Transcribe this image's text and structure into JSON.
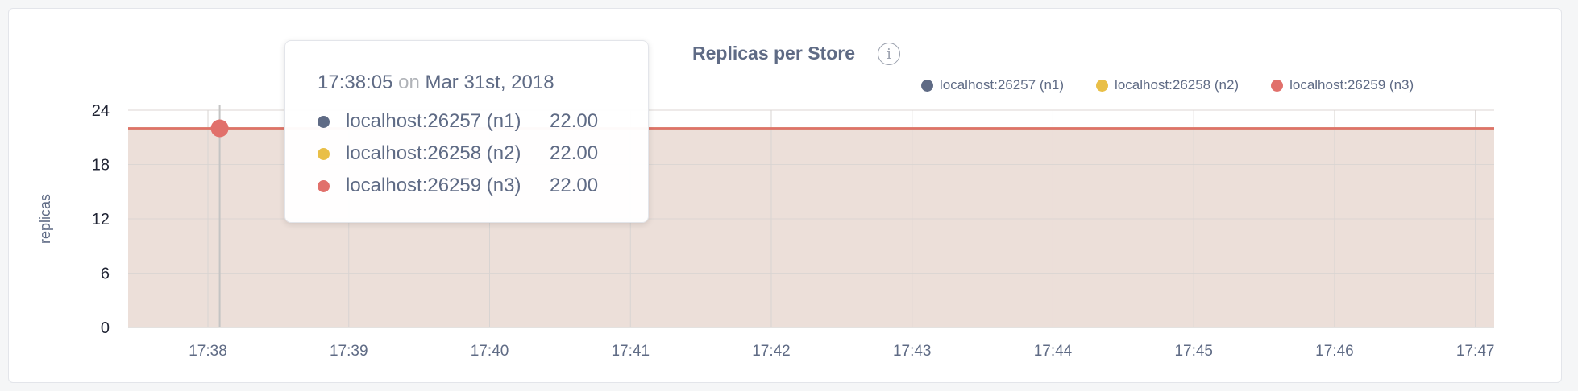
{
  "title": "Replicas per Store",
  "info_icon": "info-icon",
  "colors": {
    "n1": "#5f6b85",
    "n2": "#e9bf47",
    "n3": "#e1706b",
    "fill": "#ecdfd9",
    "text": "#5f6b85"
  },
  "tooltip": {
    "time": "17:38:05",
    "on": "on",
    "date": "Mar 31st, 2018",
    "rows": [
      {
        "name": "localhost:26257 (n1)",
        "value": "22.00"
      },
      {
        "name": "localhost:26258 (n2)",
        "value": "22.00"
      },
      {
        "name": "localhost:26259 (n3)",
        "value": "22.00"
      }
    ]
  },
  "chart_data": {
    "type": "area",
    "title": "Replicas per Store",
    "ylabel": "replicas",
    "xlabel": "",
    "ylim": [
      0,
      24
    ],
    "yticks": [
      "0",
      "6",
      "12",
      "18",
      "24"
    ],
    "xticks": [
      "17:38",
      "17:39",
      "17:40",
      "17:41",
      "17:42",
      "17:43",
      "17:44",
      "17:45",
      "17:46",
      "17:47"
    ],
    "xlim": [
      "17:37:26",
      "17:47:08"
    ],
    "grid": true,
    "legend_position": "top-right",
    "hover_time": "17:38:05",
    "series": [
      {
        "name": "localhost:26257 (n1)",
        "color": "#5f6b85",
        "x": [
          "17:37:26",
          "17:47:08"
        ],
        "values": [
          22,
          22
        ]
      },
      {
        "name": "localhost:26258 (n2)",
        "color": "#e9bf47",
        "x": [
          "17:37:26",
          "17:47:08"
        ],
        "values": [
          22,
          22
        ]
      },
      {
        "name": "localhost:26259 (n3)",
        "color": "#e1706b",
        "x": [
          "17:37:26",
          "17:47:08"
        ],
        "values": [
          22,
          22
        ]
      }
    ]
  }
}
